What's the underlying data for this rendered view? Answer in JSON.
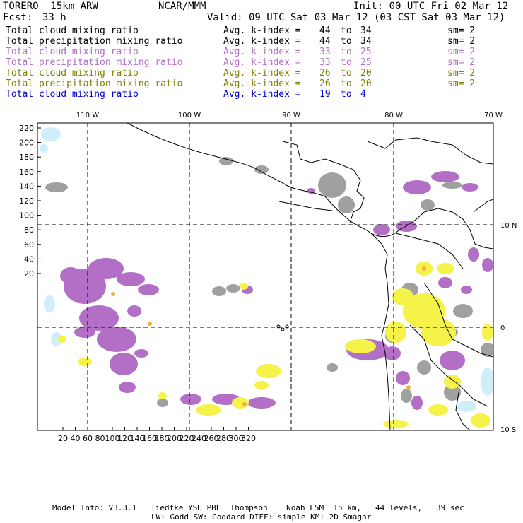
{
  "header": {
    "model": "TORERO  15km ARW",
    "center": "NCAR/MMM",
    "init": "Init: 00 UTC Fri 02 Mar 12",
    "fcst_label": "Fcst:",
    "fcst_value": "33 h",
    "valid": "Valid: 09 UTC Sat 03 Mar 12 (03 CST Sat 03 Mar 12)"
  },
  "legend": [
    {
      "field": "Total cloud mixing ratio",
      "stat": "Avg. k-index =",
      "from": "44",
      "to_word": "to",
      "to": "34",
      "sm": "sm= 2",
      "color": "#000000"
    },
    {
      "field": "Total precipitation mixing ratio",
      "stat": "Avg. k-index =",
      "from": "44",
      "to_word": "to",
      "to": "34",
      "sm": "sm= 2",
      "color": "#000000"
    },
    {
      "field": "Total cloud mixing ratio",
      "stat": "Avg. k-index =",
      "from": "33",
      "to_word": "to",
      "to": "25",
      "sm": "sm= 2",
      "color": "#b36fc6"
    },
    {
      "field": "Total precipitation mixing ratio",
      "stat": "Avg. k-index =",
      "from": "33",
      "to_word": "to",
      "to": "25",
      "sm": "sm= 2",
      "color": "#b36fc6"
    },
    {
      "field": "Total cloud mixing ratio",
      "stat": "Avg. k-index =",
      "from": "26",
      "to_word": "to",
      "to": "20",
      "sm": "sm= 2",
      "color": "#808000"
    },
    {
      "field": "Total precipitation mixing ratio",
      "stat": "Avg. k-index =",
      "from": "26",
      "to_word": "to",
      "to": "20",
      "sm": "sm= 2",
      "color": "#808000"
    },
    {
      "field": "Total cloud mixing ratio",
      "stat": "Avg. k-index =",
      "from": "19",
      "to_word": "to",
      "to": "4",
      "sm": "",
      "color": "#0000cc"
    }
  ],
  "axes": {
    "top_lon_labels": [
      "110 W",
      "100 W",
      "90 W",
      "80 W",
      "70 W"
    ],
    "right_lat_labels": [
      "10 N",
      "0",
      "10 S"
    ],
    "left_ticks": [
      "220",
      "200",
      "180",
      "160",
      "140",
      "120",
      "100",
      "80",
      "60",
      "40",
      "20"
    ],
    "bottom_ticks": [
      "20",
      "40",
      "60",
      "80",
      "100",
      "120",
      "140",
      "160",
      "180",
      "200",
      "220",
      "240",
      "260",
      "280",
      "300",
      "320"
    ]
  },
  "colors": {
    "gray": "#a0a0a0",
    "purple": "#b36fc6",
    "yellow": "#f5f24a",
    "lightblue": "#cfeefa",
    "orange": "#f0b040"
  },
  "footer": {
    "line1": "Model Info: V3.3.1   Tiedtke YSU PBL  Thompson    Noah LSM  15 km,   44 levels,   39 sec",
    "line2": "LW: Godd SW: Goddard DIFF: simple KM: 2D Smagor"
  }
}
